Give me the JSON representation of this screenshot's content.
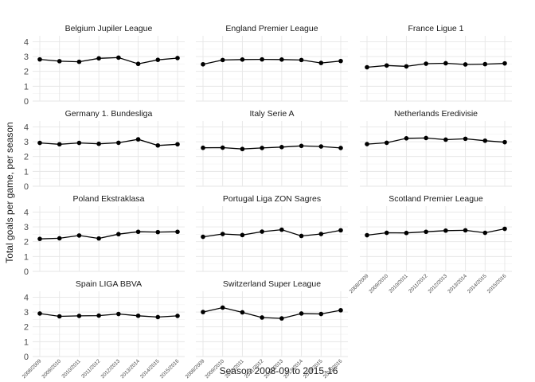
{
  "chart_data": {
    "type": "line",
    "layout": "facet-grid",
    "xlabel": "Season 2008-09 to 2015-16",
    "ylabel": "Total goals per game, per season",
    "x": [
      "2008/2009",
      "2009/2010",
      "2010/2011",
      "2011/2012",
      "2012/2013",
      "2013/2014",
      "2014/2015",
      "2015/2016"
    ],
    "ylim": [
      0,
      4.4
    ],
    "yticks": [
      "0",
      "1",
      "2",
      "3",
      "4"
    ],
    "grid": true,
    "legend": "none",
    "facets": [
      {
        "title": "Belgium Jupiler League",
        "values": [
          2.81,
          2.69,
          2.65,
          2.88,
          2.93,
          2.51,
          2.78,
          2.9
        ]
      },
      {
        "title": "England Premier League",
        "values": [
          2.48,
          2.77,
          2.8,
          2.81,
          2.8,
          2.77,
          2.57,
          2.7
        ]
      },
      {
        "title": "France Ligue 1",
        "values": [
          2.28,
          2.4,
          2.34,
          2.52,
          2.55,
          2.47,
          2.49,
          2.54
        ]
      },
      {
        "title": "Germany 1. Bundesliga",
        "values": [
          2.92,
          2.83,
          2.92,
          2.86,
          2.93,
          3.16,
          2.75,
          2.83
        ]
      },
      {
        "title": "Italy Serie A",
        "values": [
          2.59,
          2.6,
          2.51,
          2.58,
          2.64,
          2.72,
          2.68,
          2.58
        ]
      },
      {
        "title": "Netherlands Eredivisie",
        "values": [
          2.84,
          2.93,
          3.23,
          3.25,
          3.14,
          3.2,
          3.07,
          2.97
        ]
      },
      {
        "title": "Poland Ekstraklasa",
        "values": [
          2.19,
          2.23,
          2.42,
          2.22,
          2.51,
          2.67,
          2.65,
          2.67
        ]
      },
      {
        "title": "Portugal Liga ZON Sagres",
        "values": [
          2.33,
          2.52,
          2.45,
          2.68,
          2.81,
          2.39,
          2.52,
          2.77
        ]
      },
      {
        "title": "Scotland Premier League",
        "values": [
          2.44,
          2.6,
          2.59,
          2.67,
          2.75,
          2.77,
          2.6,
          2.87
        ]
      },
      {
        "title": "Spain LIGA BBVA",
        "values": [
          2.9,
          2.71,
          2.74,
          2.76,
          2.87,
          2.75,
          2.66,
          2.74
        ]
      },
      {
        "title": "Switzerland Super League",
        "values": [
          3.0,
          3.3,
          2.98,
          2.63,
          2.57,
          2.9,
          2.87,
          3.12
        ]
      }
    ],
    "colors": {
      "line": "#000000",
      "grid": "#e6e6e6",
      "text": "#1a1a1a",
      "tick": "#4d4d4d"
    }
  }
}
